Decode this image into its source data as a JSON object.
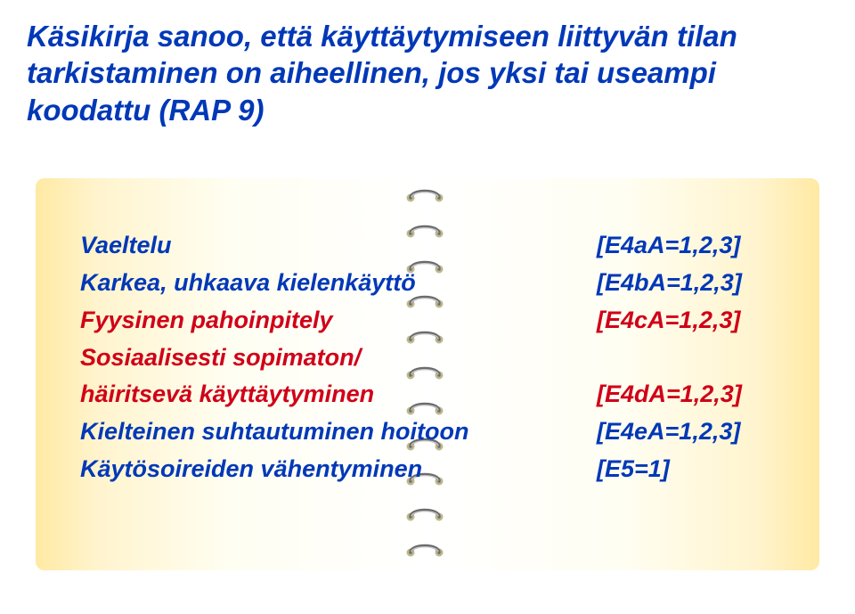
{
  "heading": "Käsikirja sanoo, että käyttäytymiseen liittyvän tilan tarkistaminen on aiheellinen, jos yksi tai useampi koodattu (RAP 9)",
  "heading_color": "#0038b7",
  "paper_grad": {
    "left": "#ffe9a3",
    "mid": "#fffef2",
    "center": "#ffffff"
  },
  "spiral": {
    "count": 11,
    "ring_color": "#6b6b6b",
    "highlight": "#cfcfcf",
    "hole_color": "#bdb88e"
  },
  "items": [
    {
      "label": "Vaeltelu",
      "value": "[E4aA=1,2,3]",
      "label_color": "#0038b7",
      "value_color": "#0038b7",
      "multiline_extra": ""
    },
    {
      "label": "Karkea, uhkaava kielenkäyttö",
      "value": "[E4bA=1,2,3]",
      "label_color": "#0038b7",
      "value_color": "#0038b7",
      "multiline_extra": ""
    },
    {
      "label": "Fyysinen pahoinpitely",
      "value": "[E4cA=1,2,3]",
      "label_color": "#d00018",
      "value_color": "#d00018",
      "multiline_extra": ""
    },
    {
      "label": "Sosiaalisesti sopimaton/\nhäiritsevä käyttäytyminen",
      "value": "[E4dA=1,2,3]",
      "label_color": "#d00018",
      "value_color": "#d00018",
      "multiline_extra": ""
    },
    {
      "label": "Kielteinen suhtautuminen hoitoon",
      "value": "[E4eA=1,2,3]",
      "label_color": "#0038b7",
      "value_color": "#0038b7",
      "multiline_extra": ""
    },
    {
      "label": "Käytösoireiden vähentyminen",
      "value": "[E5=1]",
      "label_color": "#0038b7",
      "value_color": "#0038b7",
      "multiline_extra": ""
    }
  ],
  "fonts": {
    "heading_size_pt": 24,
    "body_size_pt": 20,
    "weight": "bold",
    "style": "italic",
    "family": "Arial"
  }
}
